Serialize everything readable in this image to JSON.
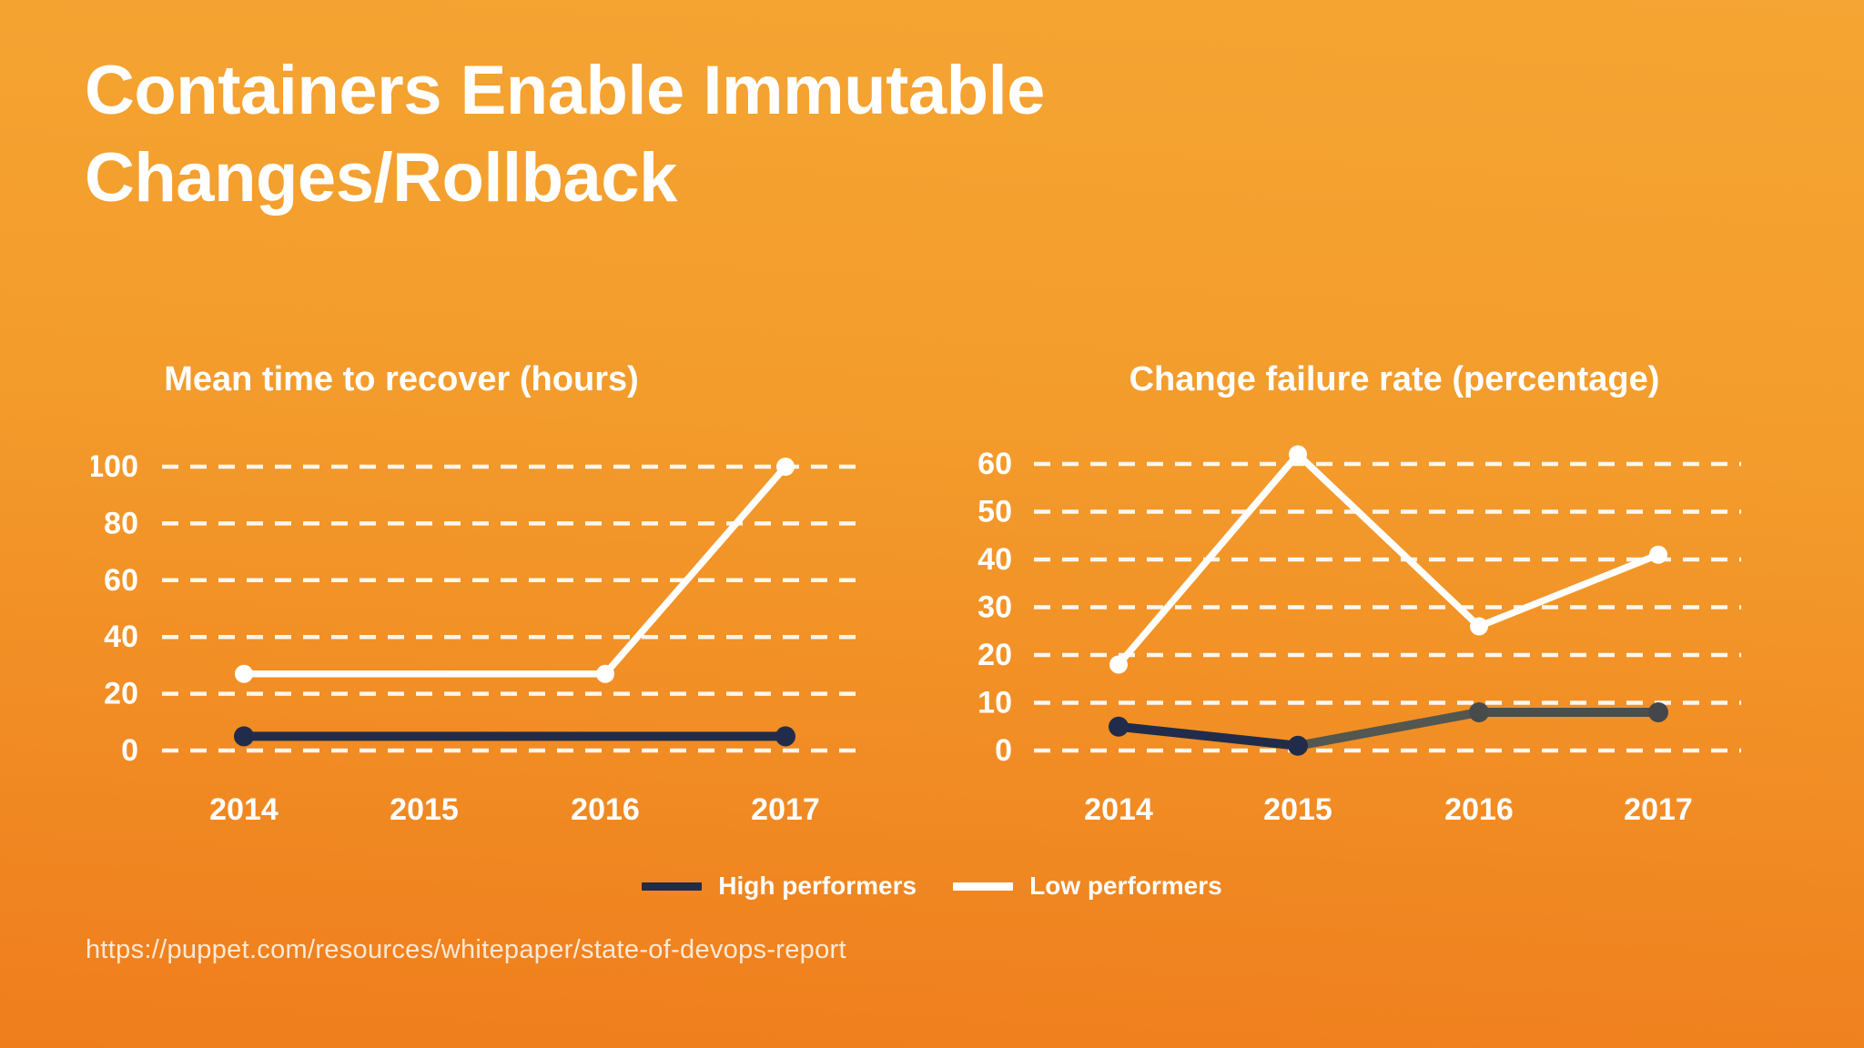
{
  "slide": {
    "title_lines": [
      "Containers Enable Immutable",
      "Changes/Rollback"
    ],
    "source_url": "https://puppet.com/resources/whitepaper/state-of-devops-report"
  },
  "colors": {
    "background_top": "#F5A533",
    "background_bottom": "#EF7D1C",
    "high_performers_navy": "#212C4B",
    "high_performers_gray_segment": "#51554D",
    "low_performers_white": "#FFFFFF",
    "gridline_white": "#FFFFFF",
    "text_white": "#FFFFFF"
  },
  "legend": {
    "position": "bottom-center",
    "items": [
      {
        "label": "High performers",
        "color": "#212C4B"
      },
      {
        "label": "Low performers",
        "color": "#FFFFFF"
      }
    ]
  },
  "chart_data": [
    {
      "type": "line",
      "title": "Mean time to recover (hours)",
      "categories": [
        "2014",
        "2015",
        "2016",
        "2017"
      ],
      "xlabel": "",
      "ylabel": "",
      "ylim": [
        0,
        100
      ],
      "yticks": [
        0,
        20,
        40,
        60,
        80,
        100
      ],
      "grid": "horizontal-dashed",
      "legend_position": "shared-bottom",
      "series": [
        {
          "name": "High performers",
          "color": "#212C4B",
          "values": [
            5,
            null,
            null,
            5
          ],
          "note": "flat line, markers only at 2014 and 2017"
        },
        {
          "name": "Low performers",
          "color": "#FFFFFF",
          "values": [
            27,
            null,
            27,
            100
          ],
          "note": "markers at 2014, 2016 and 2017; no 2015 point"
        }
      ]
    },
    {
      "type": "line",
      "title": "Change failure rate (percentage)",
      "categories": [
        "2014",
        "2015",
        "2016",
        "2017"
      ],
      "xlabel": "",
      "ylabel": "",
      "ylim": [
        0,
        60
      ],
      "yticks": [
        0,
        10,
        20,
        30,
        40,
        50,
        60
      ],
      "grid": "horizontal-dashed",
      "legend_position": "shared-bottom",
      "series": [
        {
          "name": "High performers",
          "color": "#212C4B",
          "values": [
            5,
            1,
            8,
            8
          ],
          "segment_colors": [
            "#212C4B",
            "#53574F",
            "#4B4F4C"
          ],
          "marker_colors": [
            "#212C4B",
            "#212C4B",
            "#474B4A",
            "#43474B"
          ],
          "note": "line turns gray after 2015"
        },
        {
          "name": "Low performers",
          "color": "#FFFFFF",
          "values": [
            18,
            62,
            26,
            41
          ]
        }
      ]
    }
  ]
}
